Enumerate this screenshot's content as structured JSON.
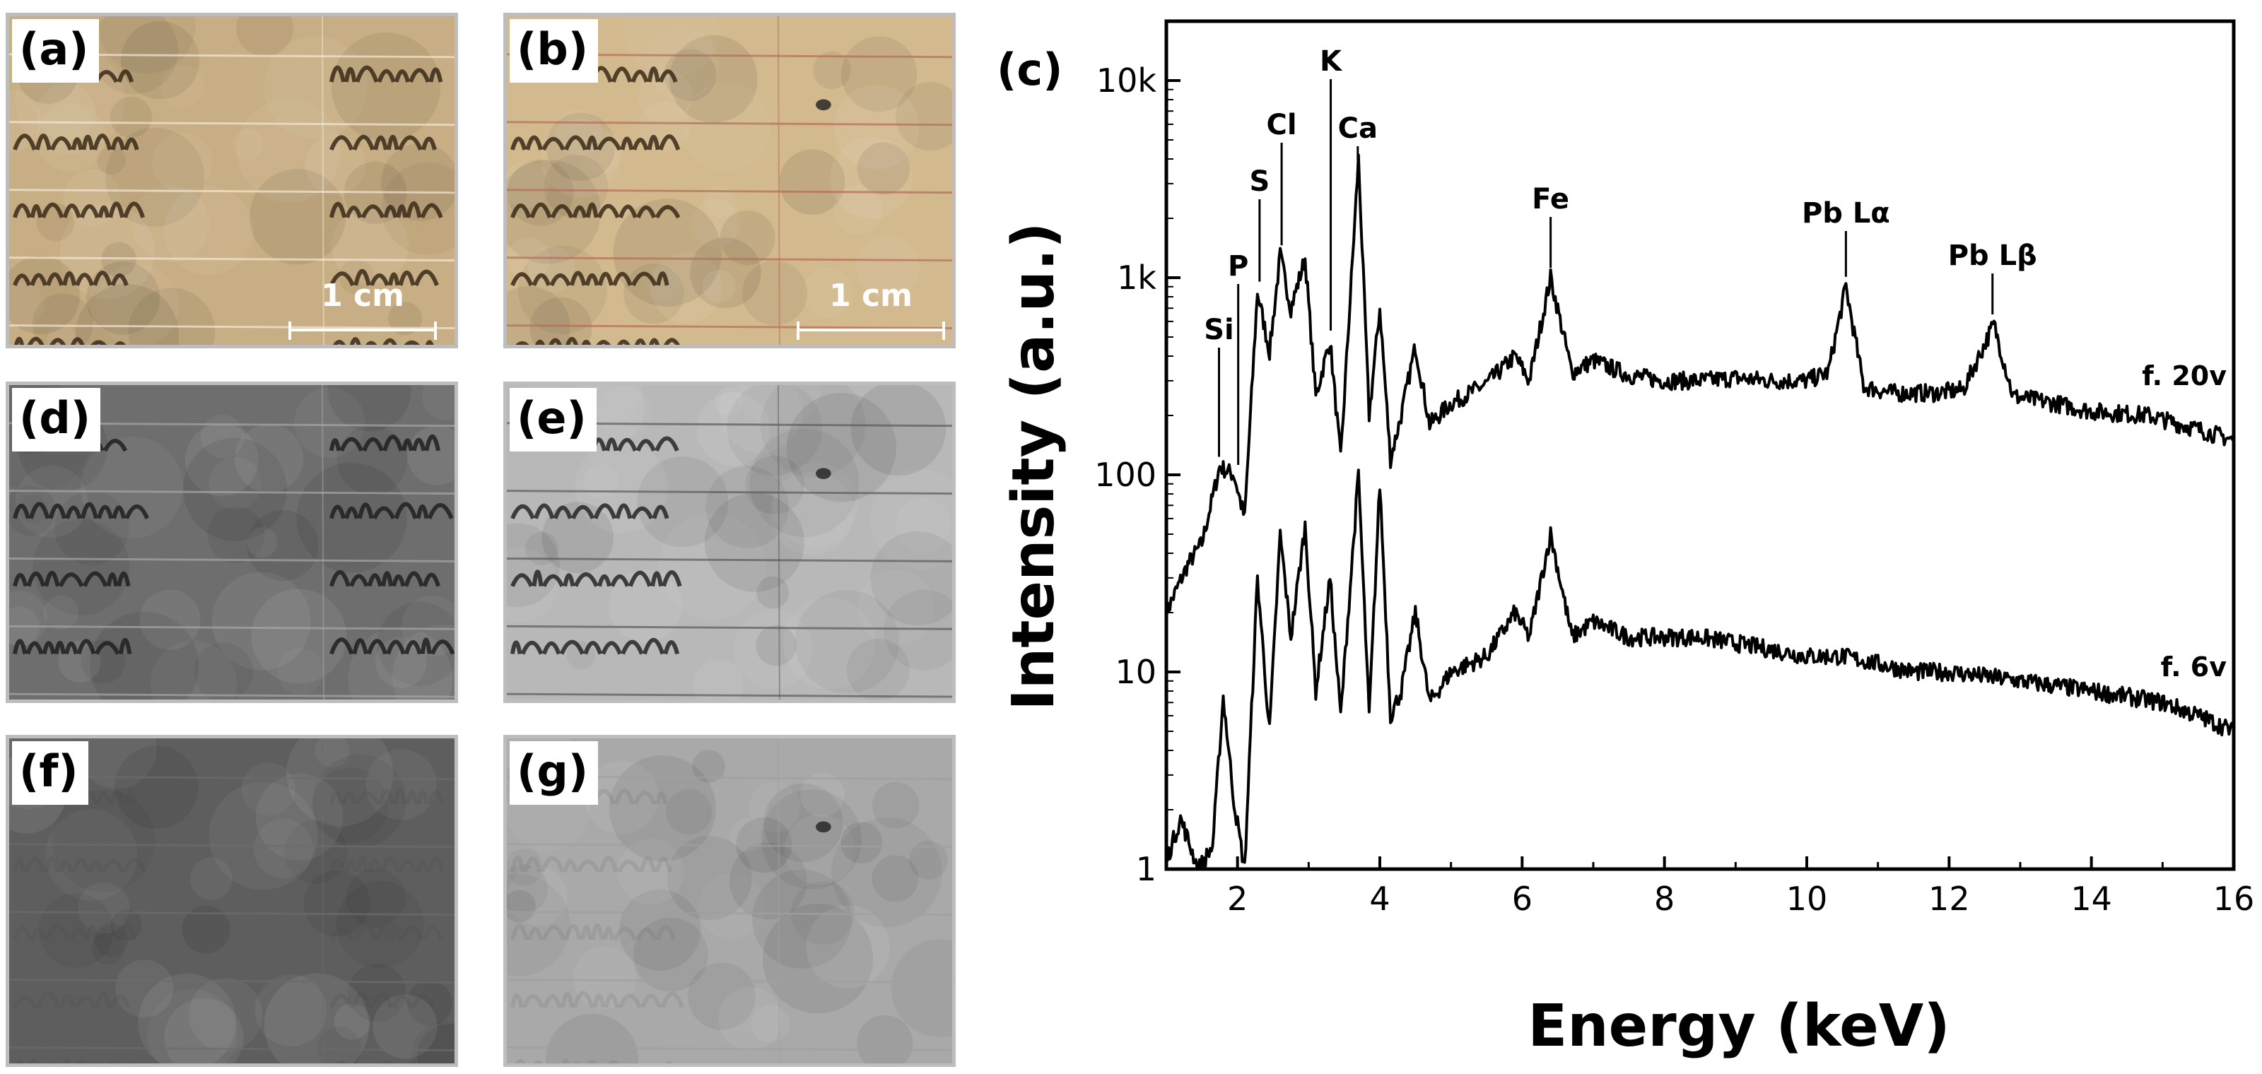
{
  "panels": [
    {
      "label": "(a)",
      "scale_bar": "1 cm",
      "tone": "#c8ae84",
      "ink": "#3a2a18",
      "line": "#f4ead6"
    },
    {
      "label": "(b)",
      "scale_bar": "1 cm",
      "tone": "#d2b98e",
      "ink": "#3a2a18",
      "line": "#b66b5c"
    },
    {
      "label": "(d)",
      "tone": "#6e6e6e",
      "ink": "#202020",
      "line": "#a8a8a8"
    },
    {
      "label": "(e)",
      "tone": "#b8b8b8",
      "ink": "#262626",
      "line": "#5a5a5a"
    },
    {
      "label": "(f)",
      "tone": "#5e5e5e",
      "ink": "#4a4a4a",
      "line": "#6c6c6c"
    },
    {
      "label": "(g)",
      "tone": "#a9a9a9",
      "ink": "#6a6a6a",
      "line": "#a0a0a0"
    }
  ],
  "chart_data": {
    "type": "line",
    "panel_label": "(c)",
    "xlabel": "Energy (keV)",
    "ylabel": "Intensity (a.u.)",
    "xlim": [
      1,
      16
    ],
    "ylim": [
      1,
      20000
    ],
    "yscale": "log",
    "x_ticks": [
      2,
      4,
      6,
      8,
      10,
      12,
      14,
      16
    ],
    "y_ticks": [
      {
        "value": 1,
        "label": "1"
      },
      {
        "value": 10,
        "label": "10"
      },
      {
        "value": 100,
        "label": "100"
      },
      {
        "value": 1000,
        "label": "1k"
      },
      {
        "value": 10000,
        "label": "10k"
      }
    ],
    "series": [
      {
        "name": "f. 20v",
        "x": [
          1.0,
          1.3,
          1.5,
          1.75,
          1.95,
          2.1,
          2.28,
          2.45,
          2.6,
          2.75,
          2.95,
          3.1,
          3.3,
          3.45,
          3.7,
          3.85,
          4.0,
          4.15,
          4.3,
          4.5,
          4.7,
          5.0,
          5.5,
          5.9,
          6.1,
          6.4,
          6.7,
          7.0,
          7.5,
          8.0,
          8.5,
          9.0,
          9.5,
          10.0,
          10.3,
          10.55,
          10.8,
          11.2,
          11.8,
          12.2,
          12.63,
          12.9,
          13.5,
          14.0,
          14.8,
          15.5,
          16.0
        ],
        "y": [
          20,
          35,
          45,
          110,
          100,
          60,
          850,
          420,
          1300,
          700,
          1250,
          250,
          480,
          120,
          4000,
          200,
          700,
          120,
          200,
          450,
          180,
          230,
          290,
          400,
          300,
          1000,
          330,
          380,
          320,
          300,
          300,
          310,
          300,
          300,
          330,
          900,
          280,
          260,
          260,
          270,
          580,
          250,
          230,
          210,
          200,
          170,
          150
        ]
      },
      {
        "name": "f. 6v",
        "x": [
          1.0,
          1.2,
          1.45,
          1.65,
          1.8,
          1.95,
          2.1,
          2.28,
          2.45,
          2.6,
          2.75,
          2.95,
          3.1,
          3.3,
          3.45,
          3.7,
          3.85,
          4.0,
          4.15,
          4.3,
          4.5,
          4.7,
          5.0,
          5.5,
          5.9,
          6.1,
          6.4,
          6.7,
          7.0,
          7.5,
          8.0,
          8.5,
          9.0,
          9.5,
          10.0,
          10.5,
          11.0,
          11.5,
          12.0,
          12.5,
          13.0,
          13.5,
          14.0,
          14.5,
          15.0,
          15.5,
          16.0
        ],
        "y": [
          1.1,
          1.8,
          1.0,
          1.3,
          7.5,
          2.2,
          1.0,
          30,
          5.0,
          50,
          15,
          55,
          8.0,
          30,
          6.0,
          100,
          6.0,
          90,
          6.0,
          8.0,
          20,
          7.0,
          10,
          12,
          20,
          15,
          50,
          15,
          18,
          15,
          15,
          15,
          14,
          13,
          12,
          12,
          11,
          10,
          10,
          9.5,
          9,
          8.5,
          8,
          7.5,
          7,
          6,
          5
        ]
      }
    ],
    "annotations": [
      {
        "text": "Si",
        "x": 1.74,
        "y_peak": 110
      },
      {
        "text": "P",
        "x": 2.01,
        "y_peak": 100
      },
      {
        "text": "S",
        "x": 2.31,
        "y_peak": 850
      },
      {
        "text": "Cl",
        "x": 2.62,
        "y_peak": 1300
      },
      {
        "text": "K",
        "x": 3.31,
        "y_peak": 480
      },
      {
        "text": "Ca",
        "x": 3.69,
        "y_peak": 4000
      },
      {
        "text": "Fe",
        "x": 6.4,
        "y_peak": 1000
      },
      {
        "text": "Pb Lα",
        "x": 10.55,
        "y_peak": 900
      },
      {
        "text": "Pb Lβ",
        "x": 12.61,
        "y_peak": 580
      }
    ]
  }
}
